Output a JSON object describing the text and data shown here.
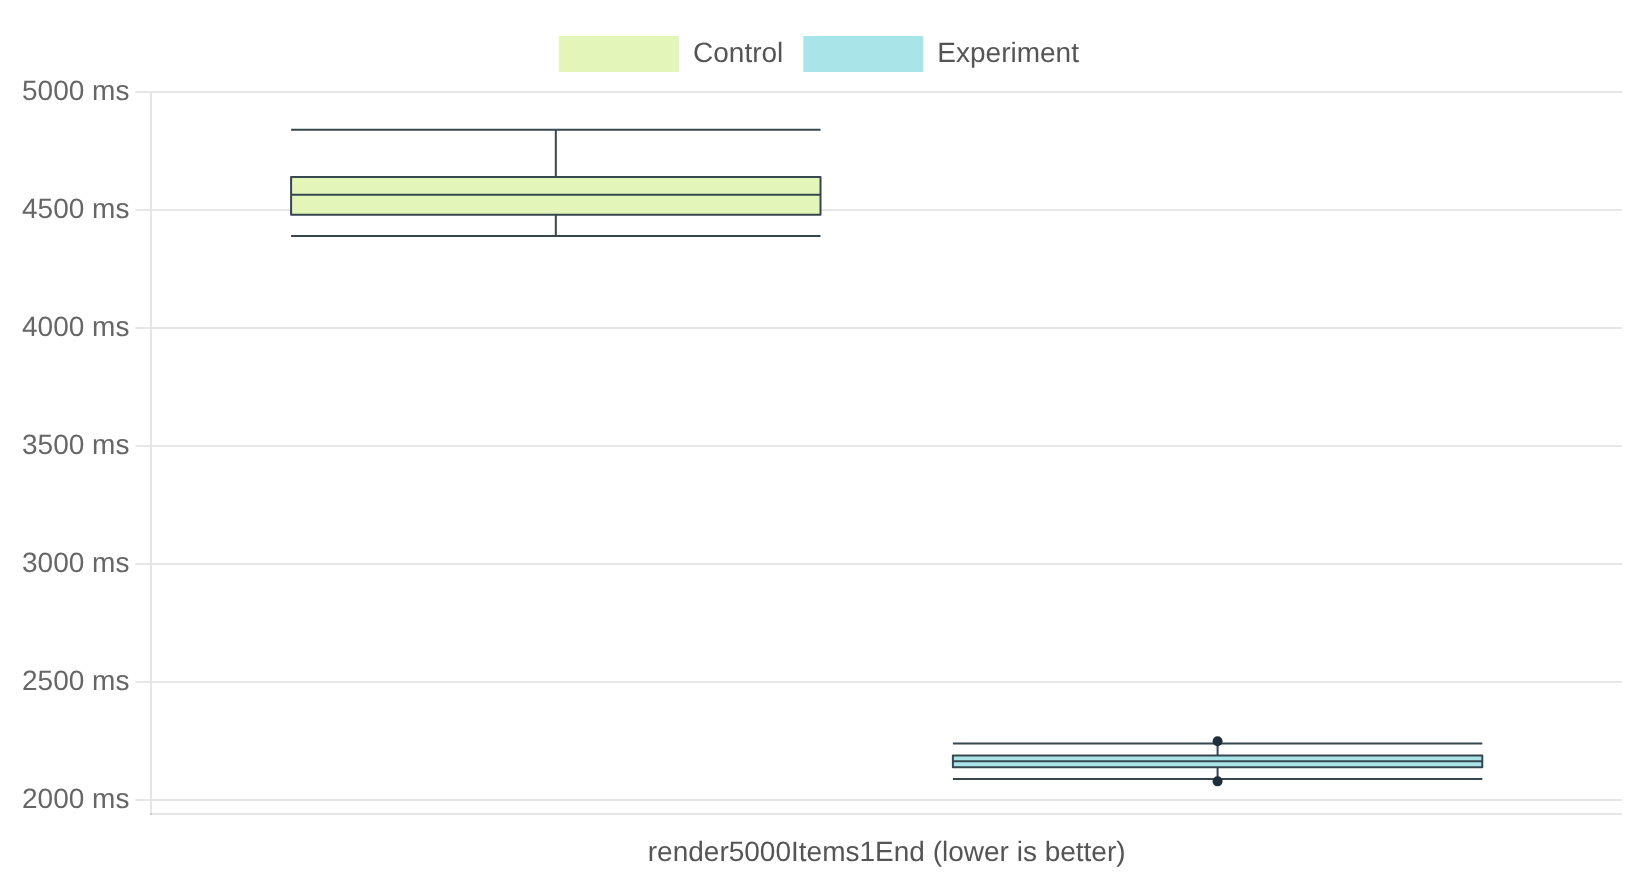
{
  "chart_data": {
    "type": "box",
    "categories": [
      "render5000Items1End (lower is better)"
    ],
    "series": [
      {
        "name": "Control",
        "color": "#e3f5b8",
        "boxes": [
          {
            "low": 4390,
            "q1": 4480,
            "median": 4565,
            "q3": 4640,
            "high": 4840
          }
        ]
      },
      {
        "name": "Experiment",
        "color": "#a8e4e8",
        "boxes": [
          {
            "low": 2090,
            "q1": 2140,
            "median": 2165,
            "q3": 2190,
            "high": 2240,
            "outliers": [
              2250,
              2080
            ]
          }
        ]
      }
    ],
    "ylim": [
      1940,
      5000
    ],
    "yticks": [
      {
        "value": 2000,
        "label": "2000 ms"
      },
      {
        "value": 2500,
        "label": "2500 ms"
      },
      {
        "value": 3000,
        "label": "3000 ms"
      },
      {
        "value": 3500,
        "label": "3500 ms"
      },
      {
        "value": 4000,
        "label": "4000 ms"
      },
      {
        "value": 4500,
        "label": "4500 ms"
      },
      {
        "value": 5000,
        "label": "5000 ms"
      }
    ],
    "grid": "y",
    "legend": "top"
  }
}
